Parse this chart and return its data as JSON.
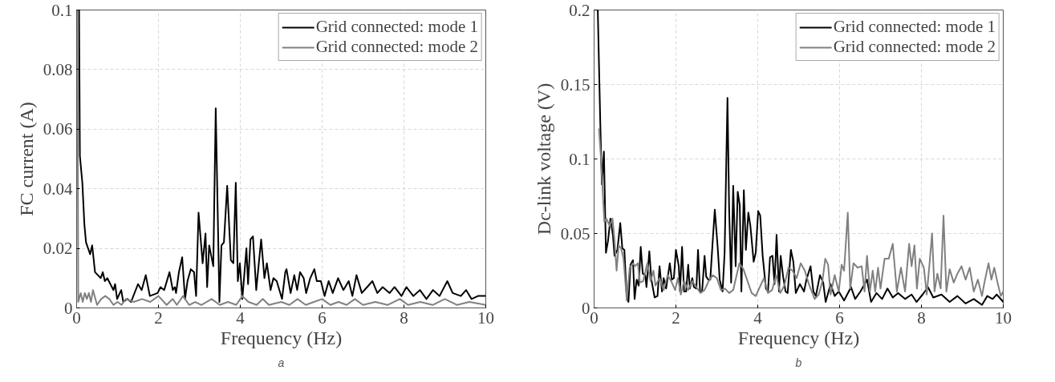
{
  "chart_data": [
    {
      "type": "line",
      "xlabel": "Frequency (Hz)",
      "ylabel": "FC current (A)",
      "xlim": [
        0,
        10
      ],
      "ylim": [
        0,
        0.1
      ],
      "xticks": [
        0,
        2,
        4,
        6,
        8,
        10
      ],
      "yticks": [
        0,
        0.02,
        0.04,
        0.06,
        0.08,
        0.1
      ],
      "grid": true,
      "legend": "top right",
      "annotations": [
        "a"
      ],
      "series": [
        {
          "name": "Grid connected: mode 1",
          "color": "#000000",
          "x": [
            0.06,
            0.08,
            0.14,
            0.19,
            0.23,
            0.33,
            0.38,
            0.45,
            0.59,
            0.64,
            0.69,
            0.75,
            0.9,
            0.94,
            0.99,
            1.09,
            1.14,
            1.24,
            1.33,
            1.5,
            1.59,
            1.69,
            1.79,
            1.98,
            2.05,
            2.14,
            2.27,
            2.35,
            2.4,
            2.43,
            2.5,
            2.58,
            2.65,
            2.71,
            2.79,
            2.87,
            2.92,
            2.98,
            3.08,
            3.15,
            3.19,
            3.24,
            3.34,
            3.4,
            3.49,
            3.54,
            3.6,
            3.68,
            3.77,
            3.83,
            3.89,
            3.94,
            3.99,
            4.05,
            4.15,
            4.19,
            4.25,
            4.31,
            4.39,
            4.51,
            4.59,
            4.65,
            4.74,
            4.81,
            4.89,
            5.02,
            5.1,
            5.13,
            5.23,
            5.32,
            5.39,
            5.46,
            5.55,
            5.61,
            5.71,
            5.81,
            5.87,
            5.97,
            6.06,
            6.16,
            6.26,
            6.39,
            6.52,
            6.65,
            6.74,
            6.84,
            6.97,
            7.1,
            7.23,
            7.35,
            7.48,
            7.65,
            7.77,
            7.94,
            8.06,
            8.23,
            8.39,
            8.55,
            8.71,
            8.87,
            9.06,
            9.19,
            9.39,
            9.52,
            9.65,
            9.81,
            10.0
          ],
          "values": [
            0.1,
            0.051,
            0.042,
            0.028,
            0.022,
            0.018,
            0.021,
            0.012,
            0.01,
            0.012,
            0.009,
            0.01,
            0.006,
            0.008,
            0.003,
            0.006,
            0.002,
            0.003,
            0.002,
            0.008,
            0.006,
            0.011,
            0.004,
            0.005,
            0.007,
            0.006,
            0.012,
            0.006,
            0.007,
            0.005,
            0.012,
            0.017,
            0.003,
            0.009,
            0.013,
            0.012,
            0.004,
            0.032,
            0.015,
            0.025,
            0.007,
            0.021,
            0.014,
            0.067,
            0.002,
            0.021,
            0.022,
            0.041,
            0.016,
            0.015,
            0.042,
            0.009,
            0.015,
            0.003,
            0.02,
            0.008,
            0.023,
            0.024,
            0.006,
            0.023,
            0.01,
            0.015,
            0.006,
            0.01,
            0.009,
            0.003,
            0.012,
            0.013,
            0.005,
            0.011,
            0.006,
            0.012,
            0.01,
            0.005,
            0.01,
            0.013,
            0.009,
            0.009,
            0.004,
            0.009,
            0.005,
            0.01,
            0.006,
            0.009,
            0.004,
            0.011,
            0.005,
            0.007,
            0.009,
            0.005,
            0.007,
            0.005,
            0.007,
            0.004,
            0.007,
            0.004,
            0.006,
            0.003,
            0.006,
            0.004,
            0.009,
            0.005,
            0.004,
            0.006,
            0.003,
            0.004,
            0.004
          ]
        },
        {
          "name": "Grid connected: mode 2",
          "color": "#808080",
          "x": [
            0.02,
            0.04,
            0.1,
            0.15,
            0.2,
            0.25,
            0.3,
            0.35,
            0.4,
            0.5,
            0.6,
            0.7,
            0.8,
            0.9,
            1.0,
            1.1,
            1.2,
            1.4,
            1.6,
            1.8,
            2.0,
            2.2,
            2.35,
            2.45,
            2.6,
            2.75,
            2.9,
            3.05,
            3.3,
            3.5,
            3.7,
            3.9,
            4.05,
            4.2,
            4.4,
            4.55,
            4.7,
            5.0,
            5.2,
            5.4,
            5.6,
            5.8,
            6.0,
            6.2,
            6.4,
            6.6,
            6.8,
            7.0,
            7.3,
            7.6,
            7.9,
            8.1,
            8.4,
            8.7,
            9.0,
            9.3,
            9.6,
            10.0
          ],
          "values": [
            0.1,
            0.002,
            0.005,
            0.002,
            0.005,
            0.003,
            0.005,
            0.002,
            0.006,
            0.001,
            0.003,
            0.004,
            0.003,
            0.001,
            0.002,
            0.001,
            0.003,
            0.002,
            0.003,
            0.002,
            0.004,
            0.001,
            0.003,
            0.001,
            0.004,
            0.001,
            0.002,
            0.001,
            0.003,
            0.001,
            0.002,
            0.001,
            0.004,
            0.002,
            0.001,
            0.003,
            0.001,
            0.002,
            0.001,
            0.003,
            0.001,
            0.002,
            0.003,
            0.001,
            0.002,
            0.001,
            0.003,
            0.001,
            0.002,
            0.001,
            0.003,
            0.001,
            0.002,
            0.001,
            0.003,
            0.001,
            0.002,
            0.001
          ]
        }
      ]
    },
    {
      "type": "line",
      "xlabel": "Frequency (Hz)",
      "ylabel": "Dc-link voltage (V)",
      "xlim": [
        0,
        10
      ],
      "ylim": [
        0,
        0.2
      ],
      "xticks": [
        0,
        2,
        4,
        6,
        8,
        10
      ],
      "yticks": [
        0,
        0.05,
        0.1,
        0.15,
        0.2
      ],
      "grid": true,
      "legend": "top right",
      "annotations": [
        "b"
      ],
      "series": [
        {
          "name": "Grid connected: mode 1",
          "color": "#000000",
          "x": [
            0.09,
            0.15,
            0.19,
            0.24,
            0.29,
            0.34,
            0.4,
            0.46,
            0.5,
            0.57,
            0.64,
            0.69,
            0.74,
            0.79,
            0.84,
            0.89,
            0.95,
            0.99,
            1.04,
            1.09,
            1.14,
            1.19,
            1.25,
            1.28,
            1.35,
            1.4,
            1.48,
            1.55,
            1.6,
            1.66,
            1.7,
            1.76,
            1.85,
            1.9,
            1.95,
            2.0,
            2.07,
            2.1,
            2.15,
            2.2,
            2.25,
            2.3,
            2.34,
            2.4,
            2.44,
            2.5,
            2.54,
            2.59,
            2.64,
            2.7,
            2.74,
            2.79,
            2.84,
            2.89,
            2.95,
            3.02,
            3.07,
            3.14,
            3.19,
            3.26,
            3.3,
            3.35,
            3.4,
            3.46,
            3.51,
            3.56,
            3.6,
            3.66,
            3.71,
            3.77,
            3.82,
            3.9,
            3.95,
            4.01,
            4.06,
            4.12,
            4.2,
            4.25,
            4.3,
            4.36,
            4.41,
            4.46,
            4.52,
            4.56,
            4.62,
            4.68,
            4.73,
            4.81,
            4.87,
            4.93,
            5.03,
            5.13,
            5.19,
            5.29,
            5.36,
            5.42,
            5.52,
            5.6,
            5.66,
            5.78,
            5.88,
            5.98,
            6.11,
            6.28,
            6.38,
            6.51,
            6.67,
            6.77,
            6.9,
            7.04,
            7.17,
            7.3,
            7.43,
            7.6,
            7.76,
            7.88,
            8.03,
            8.16,
            8.29,
            8.49,
            8.69,
            8.88,
            9.08,
            9.28,
            9.48,
            9.61,
            9.74,
            9.84,
            10.0
          ],
          "values": [
            0.2,
            0.126,
            0.083,
            0.105,
            0.037,
            0.045,
            0.06,
            0.049,
            0.035,
            0.039,
            0.057,
            0.04,
            0.039,
            0.011,
            0.004,
            0.029,
            0.032,
            0.006,
            0.019,
            0.015,
            0.041,
            0.023,
            0.022,
            0.014,
            0.038,
            0.019,
            0.007,
            0.008,
            0.028,
            0.011,
            0.02,
            0.013,
            0.03,
            0.019,
            0.02,
            0.039,
            0.028,
            0.011,
            0.041,
            0.011,
            0.011,
            0.029,
            0.013,
            0.02,
            0.014,
            0.013,
            0.039,
            0.011,
            0.011,
            0.035,
            0.021,
            0.019,
            0.019,
            0.041,
            0.066,
            0.041,
            0.019,
            0.011,
            0.037,
            0.141,
            0.067,
            0.017,
            0.082,
            0.028,
            0.078,
            0.069,
            0.011,
            0.079,
            0.039,
            0.064,
            0.055,
            0.031,
            0.037,
            0.065,
            0.062,
            0.035,
            0.013,
            0.011,
            0.034,
            0.035,
            0.016,
            0.049,
            0.011,
            0.035,
            0.021,
            0.011,
            0.01,
            0.039,
            0.031,
            0.01,
            0.016,
            0.011,
            0.019,
            0.028,
            0.011,
            0.008,
            0.022,
            0.017,
            0.004,
            0.016,
            0.008,
            0.011,
            0.005,
            0.014,
            0.006,
            0.011,
            0.019,
            0.004,
            0.01,
            0.006,
            0.013,
            0.007,
            0.01,
            0.006,
            0.009,
            0.004,
            0.009,
            0.014,
            0.007,
            0.009,
            0.004,
            0.008,
            0.003,
            0.006,
            0.002,
            0.008,
            0.006,
            0.009,
            0.004
          ]
        },
        {
          "name": "Grid connected: mode 2",
          "color": "#808080",
          "x": [
            0.12,
            0.17,
            0.25,
            0.3,
            0.38,
            0.45,
            0.5,
            0.55,
            0.6,
            0.66,
            0.72,
            0.8,
            0.87,
            0.95,
            1.0,
            1.07,
            1.12,
            1.2,
            1.3,
            1.38,
            1.45,
            1.5,
            1.6,
            1.7,
            1.8,
            1.9,
            1.98,
            2.05,
            2.12,
            2.2,
            2.3,
            2.4,
            2.5,
            2.6,
            2.7,
            2.8,
            2.9,
            3.0,
            3.1,
            3.2,
            3.3,
            3.4,
            3.55,
            3.65,
            3.75,
            3.85,
            3.95,
            4.05,
            4.15,
            4.25,
            4.35,
            4.45,
            4.55,
            4.65,
            4.75,
            4.85,
            4.95,
            5.05,
            5.15,
            5.25,
            5.39,
            5.49,
            5.58,
            5.65,
            5.72,
            5.78,
            5.88,
            5.98,
            6.05,
            6.11,
            6.2,
            6.26,
            6.34,
            6.44,
            6.54,
            6.61,
            6.67,
            6.74,
            6.81,
            6.87,
            6.94,
            7.0,
            7.1,
            7.2,
            7.3,
            7.4,
            7.5,
            7.6,
            7.7,
            7.76,
            7.83,
            7.89,
            7.96,
            8.06,
            8.13,
            8.19,
            8.26,
            8.32,
            8.39,
            8.47,
            8.54,
            8.61,
            8.69,
            8.79,
            8.88,
            8.98,
            9.08,
            9.18,
            9.28,
            9.38,
            9.48,
            9.54,
            9.64,
            9.71,
            9.78,
            9.86,
            9.94,
            10.0
          ],
          "values": [
            0.12,
            0.1,
            0.058,
            0.06,
            0.055,
            0.06,
            0.045,
            0.025,
            0.042,
            0.04,
            0.033,
            0.005,
            0.027,
            0.03,
            0.028,
            0.03,
            0.017,
            0.018,
            0.03,
            0.018,
            0.025,
            0.015,
            0.02,
            0.012,
            0.022,
            0.017,
            0.012,
            0.02,
            0.009,
            0.018,
            0.012,
            0.018,
            0.014,
            0.01,
            0.012,
            0.018,
            0.022,
            0.02,
            0.012,
            0.013,
            0.01,
            0.012,
            0.03,
            0.026,
            0.018,
            0.01,
            0.008,
            0.014,
            0.02,
            0.01,
            0.012,
            0.022,
            0.01,
            0.015,
            0.027,
            0.025,
            0.02,
            0.03,
            0.025,
            0.016,
            0.006,
            0.009,
            0.018,
            0.033,
            0.029,
            0.009,
            0.022,
            0.011,
            0.029,
            0.025,
            0.064,
            0.013,
            0.03,
            0.027,
            0.028,
            0.011,
            0.035,
            0.011,
            0.025,
            0.011,
            0.027,
            0.013,
            0.033,
            0.033,
            0.043,
            0.011,
            0.027,
            0.011,
            0.043,
            0.028,
            0.042,
            0.013,
            0.033,
            0.027,
            0.009,
            0.027,
            0.05,
            0.011,
            0.023,
            0.013,
            0.062,
            0.011,
            0.026,
            0.017,
            0.023,
            0.028,
            0.019,
            0.027,
            0.011,
            0.019,
            0.008,
            0.017,
            0.03,
            0.019,
            0.027,
            0.017,
            0.008,
            0.011
          ]
        }
      ]
    }
  ]
}
